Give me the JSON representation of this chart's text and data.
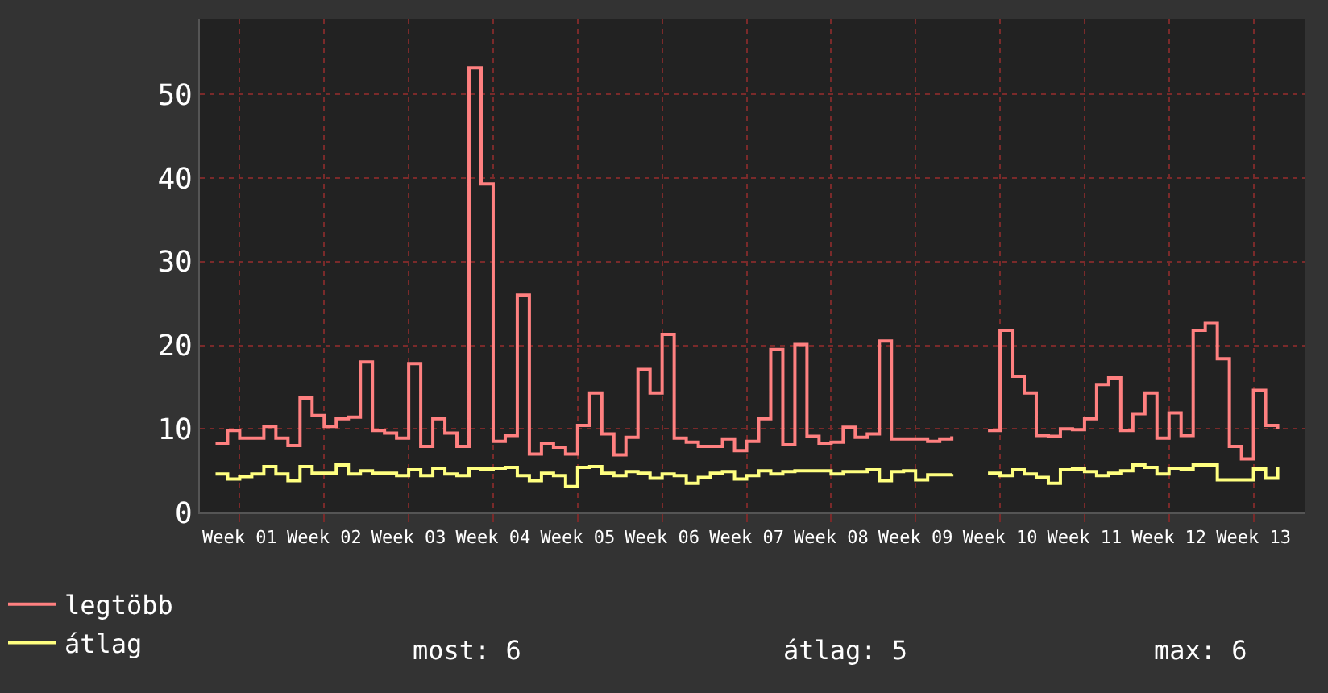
{
  "chart_data": {
    "type": "step",
    "line_style": "solid",
    "marker": "none",
    "grid": true,
    "legend": "bottom left",
    "categories": [
      null,
      null,
      "Week 01",
      null,
      null,
      null,
      null,
      null,
      null,
      "Week 02",
      null,
      null,
      null,
      null,
      null,
      null,
      "Week 03",
      null,
      null,
      null,
      null,
      null,
      null,
      "Week 04",
      null,
      null,
      null,
      null,
      null,
      null,
      "Week 05",
      null,
      null,
      null,
      null,
      null,
      null,
      "Week 06",
      null,
      null,
      null,
      null,
      null,
      null,
      "Week 07",
      null,
      null,
      null,
      null,
      null,
      null,
      "Week 08",
      null,
      null,
      null,
      null,
      null,
      null,
      "Week 09",
      null,
      null,
      null,
      null,
      null,
      null,
      "Week 10",
      null,
      null,
      null,
      null,
      null,
      null,
      "Week 11",
      null,
      null,
      null,
      null,
      null,
      null,
      "Week 12",
      null,
      null,
      null,
      null,
      null,
      null,
      "Week 13",
      null,
      null
    ],
    "series": [
      {
        "name": "legtöbb",
        "color": "#ff8080",
        "values": [
          8.3,
          9.8,
          8.9,
          8.9,
          10.3,
          8.9,
          8.0,
          13.7,
          11.6,
          10.3,
          11.2,
          11.4,
          18.0,
          9.8,
          9.5,
          8.9,
          17.8,
          7.9,
          11.2,
          9.5,
          7.9,
          53.2,
          39.3,
          8.5,
          9.2,
          26.0,
          7.0,
          8.3,
          7.8,
          7.0,
          10.4,
          14.3,
          9.4,
          6.9,
          9.0,
          17.1,
          14.3,
          21.3,
          8.9,
          8.4,
          7.9,
          7.9,
          8.8,
          7.4,
          8.5,
          11.2,
          19.5,
          8.1,
          20.1,
          9.1,
          8.3,
          8.4,
          10.2,
          9.0,
          9.4,
          20.5,
          8.8,
          8.8,
          8.8,
          8.5,
          8.8,
          9.1,
          null,
          null,
          9.8,
          21.8,
          16.3,
          14.3,
          9.2,
          9.1,
          10.0,
          9.9,
          11.2,
          15.3,
          16.1,
          9.8,
          11.8,
          14.3,
          8.9,
          11.9,
          9.2,
          21.8,
          22.7,
          18.4,
          7.9,
          6.4,
          14.6,
          10.4,
          10.0
        ]
      },
      {
        "name": "átlag",
        "color": "#ffff80",
        "values": [
          4.6,
          4.0,
          4.3,
          4.6,
          5.5,
          4.6,
          3.8,
          5.5,
          4.7,
          4.7,
          5.7,
          4.6,
          5.0,
          4.7,
          4.7,
          4.4,
          5.1,
          4.4,
          5.3,
          4.6,
          4.4,
          5.3,
          5.2,
          5.3,
          5.4,
          4.4,
          3.8,
          4.7,
          4.4,
          3.1,
          5.4,
          5.5,
          4.7,
          4.4,
          4.9,
          4.7,
          4.1,
          4.6,
          4.4,
          3.5,
          4.2,
          4.7,
          4.9,
          4.0,
          4.4,
          5.0,
          4.6,
          4.9,
          5.0,
          5.0,
          5.0,
          4.6,
          4.9,
          4.9,
          5.1,
          3.8,
          4.9,
          5.0,
          3.9,
          4.5,
          4.5,
          4.6,
          null,
          null,
          4.7,
          4.4,
          5.1,
          4.6,
          4.2,
          3.5,
          5.1,
          5.2,
          4.9,
          4.4,
          4.7,
          5.0,
          5.7,
          5.4,
          4.6,
          5.3,
          5.2,
          5.7,
          5.7,
          3.9,
          3.9,
          3.9,
          5.2,
          4.1,
          5.5
        ]
      }
    ],
    "ylim": [
      0,
      59
    ],
    "yticks": [
      0,
      10,
      20,
      30,
      40,
      50
    ],
    "annotations": [
      "most: 6",
      "átlag: 5",
      "max: 6"
    ]
  }
}
